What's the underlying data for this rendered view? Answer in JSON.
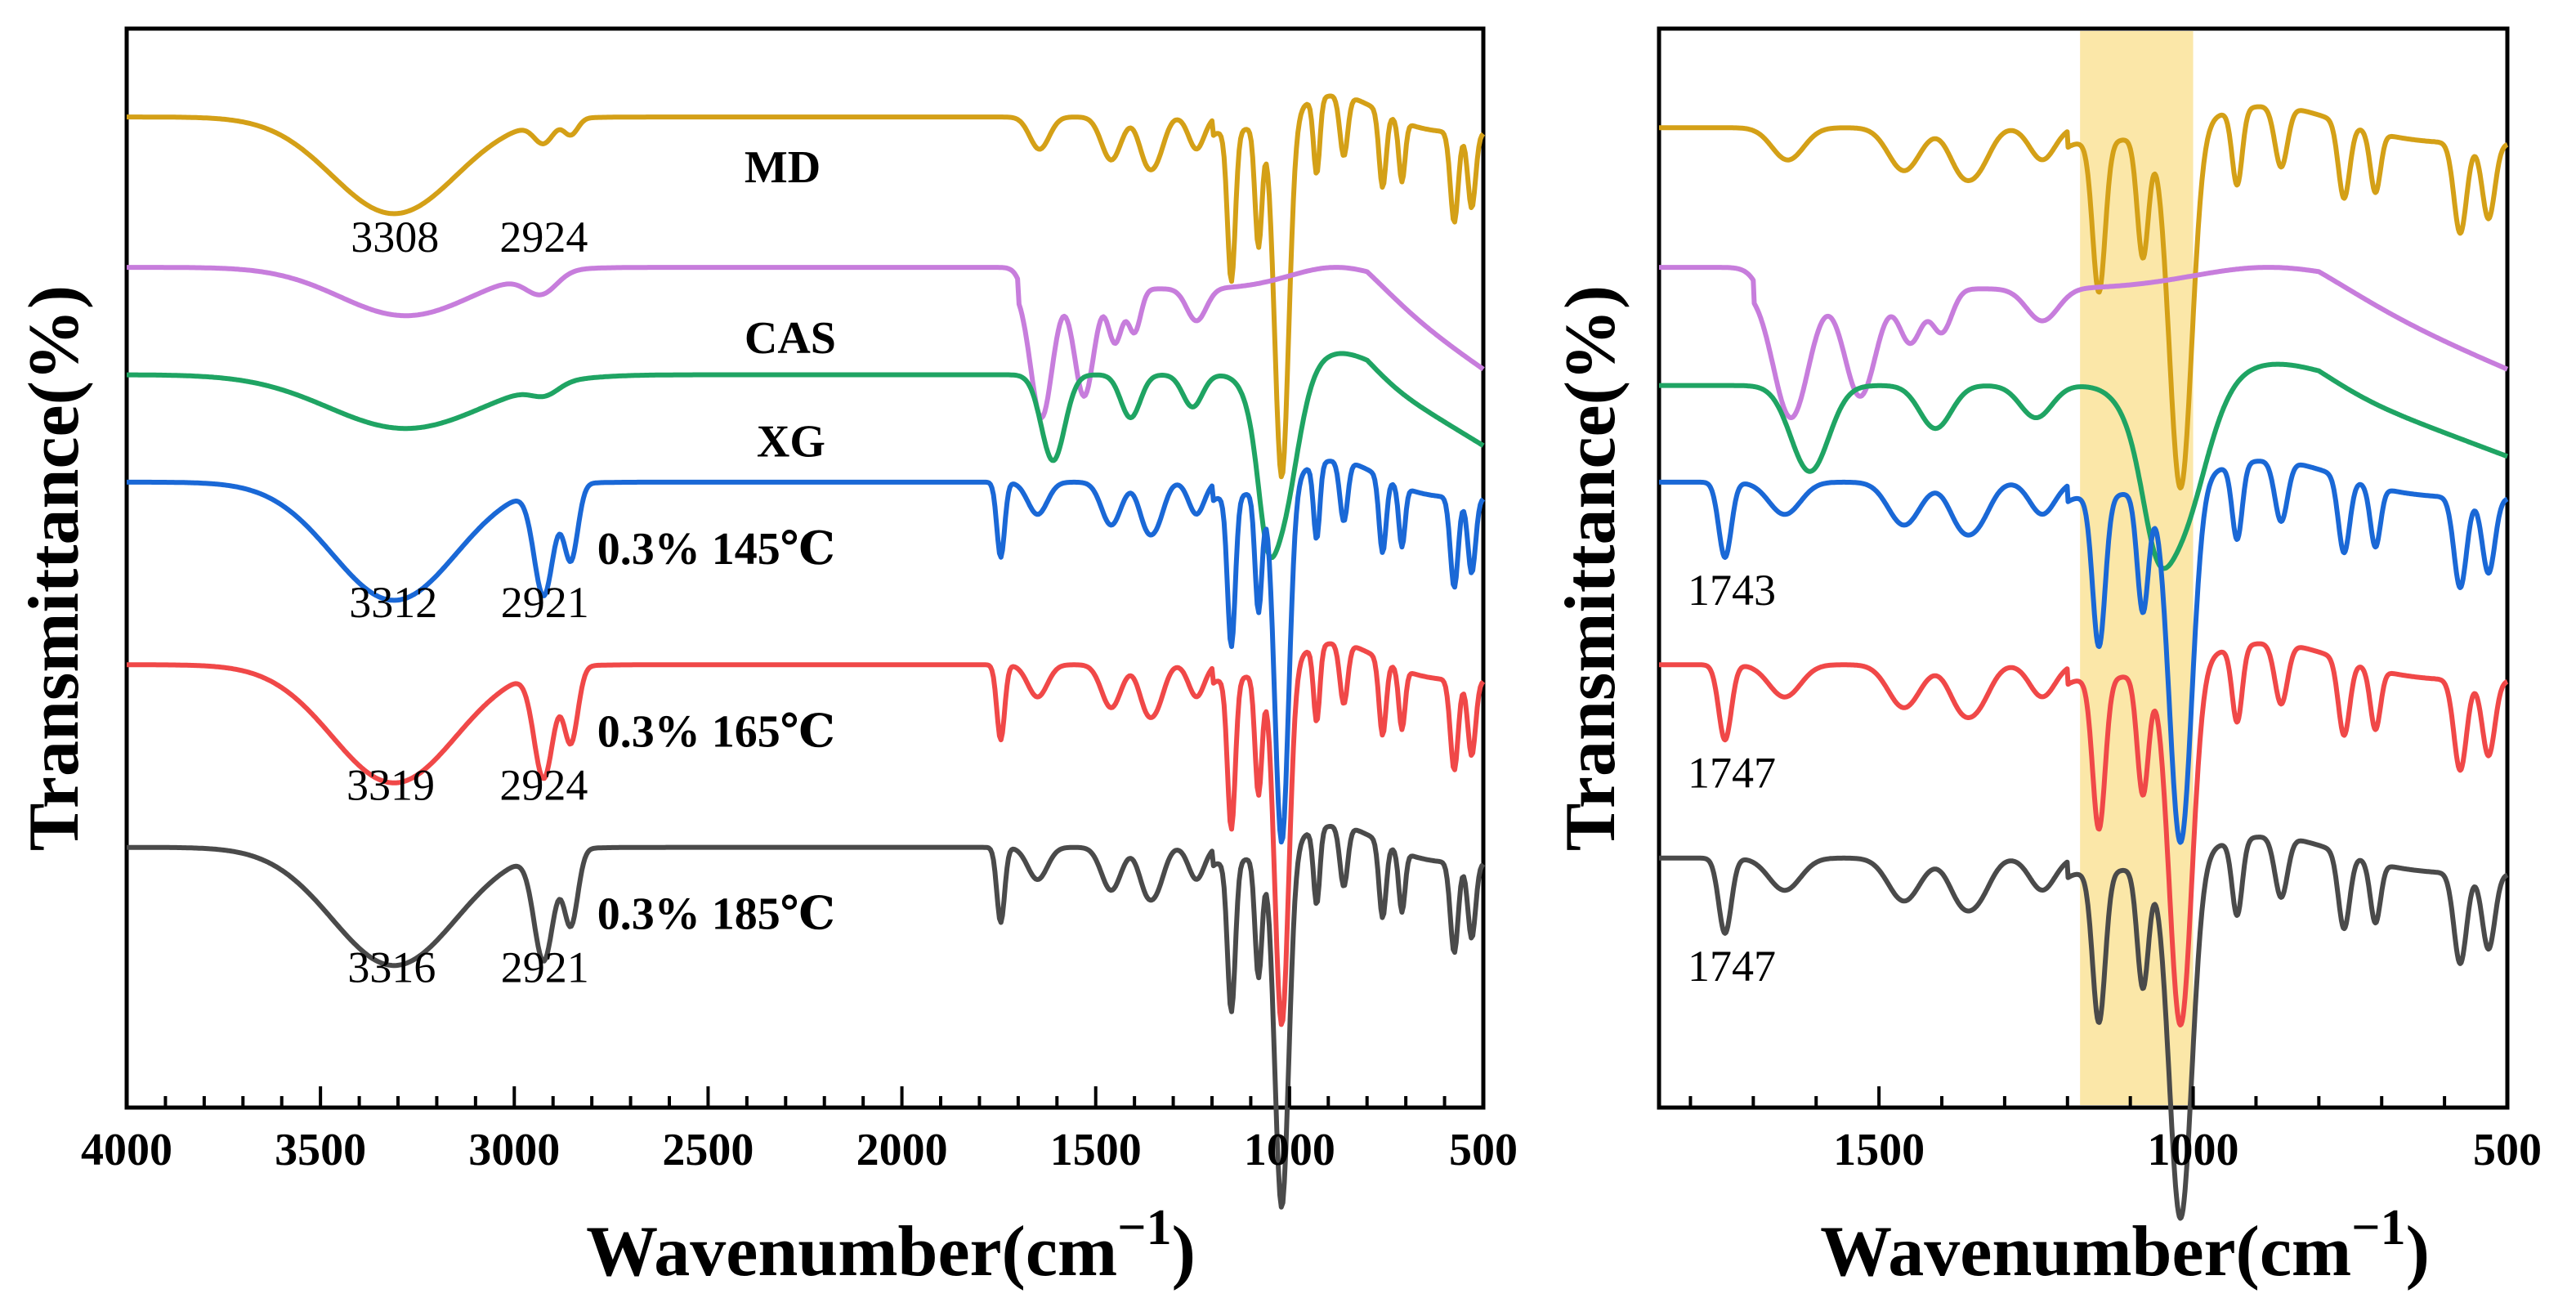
{
  "chart_data": [
    {
      "type": "line",
      "panel": "left",
      "xlabel": "Wavenumber(cm",
      "xlabel_exponent": "−1",
      "xlabel_close": ")",
      "ylabel": "Transmittance(%)",
      "xlim": [
        4000,
        500
      ],
      "reversed_x": true,
      "xticks": [
        "4000",
        "3500",
        "3000",
        "2500",
        "2000",
        "1500",
        "1000",
        "500"
      ],
      "series": [
        {
          "name": "MD",
          "color": "#D4A017",
          "offset": 0.92,
          "peaks": [
            {
              "x": 3308,
              "label": "3308"
            },
            {
              "x": 2924,
              "label": "2924"
            }
          ]
        },
        {
          "name": "CAS",
          "color": "#C77DDC",
          "offset": 0.78,
          "peaks": []
        },
        {
          "name": "XG",
          "color": "#1FA463",
          "offset": 0.68,
          "peaks": []
        },
        {
          "name": "0.3% 145℃",
          "color": "#1A68D6",
          "offset": 0.58,
          "peaks": [
            {
              "x": 3312,
              "label": "3312"
            },
            {
              "x": 2921,
              "label": "2921"
            }
          ]
        },
        {
          "name": "0.3% 165℃",
          "color": "#F04848",
          "offset": 0.41,
          "peaks": [
            {
              "x": 3319,
              "label": "3319"
            },
            {
              "x": 2924,
              "label": "2924"
            }
          ]
        },
        {
          "name": "0.3% 185℃",
          "color": "#4A4A4A",
          "offset": 0.24,
          "peaks": [
            {
              "x": 3316,
              "label": "3316"
            },
            {
              "x": 2921,
              "label": "2921"
            }
          ]
        }
      ]
    },
    {
      "type": "line",
      "panel": "right",
      "xlabel": "Wavenumber(cm",
      "xlabel_exponent": "−1",
      "xlabel_close": ")",
      "ylabel": "Transmittance(%)",
      "xlim": [
        1850,
        500
      ],
      "reversed_x": true,
      "xticks": [
        "1500",
        "1000",
        "500"
      ],
      "highlight_band": [
        1180,
        1000
      ],
      "highlight_color": "#FBE7A8",
      "series": [
        {
          "name": "MD",
          "color": "#D4A017",
          "offset": 0.91,
          "peaks": []
        },
        {
          "name": "CAS",
          "color": "#C77DDC",
          "offset": 0.78,
          "peaks": []
        },
        {
          "name": "XG",
          "color": "#1FA463",
          "offset": 0.67,
          "peaks": []
        },
        {
          "name": "0.3% 145℃",
          "color": "#1A68D6",
          "offset": 0.58,
          "peaks": [
            {
              "x": 1743,
              "label": "1743"
            }
          ]
        },
        {
          "name": "0.3% 165℃",
          "color": "#F04848",
          "offset": 0.41,
          "peaks": [
            {
              "x": 1747,
              "label": "1747"
            }
          ]
        },
        {
          "name": "0.3% 185℃",
          "color": "#4A4A4A",
          "offset": 0.23,
          "peaks": [
            {
              "x": 1747,
              "label": "1747"
            }
          ]
        }
      ]
    }
  ]
}
